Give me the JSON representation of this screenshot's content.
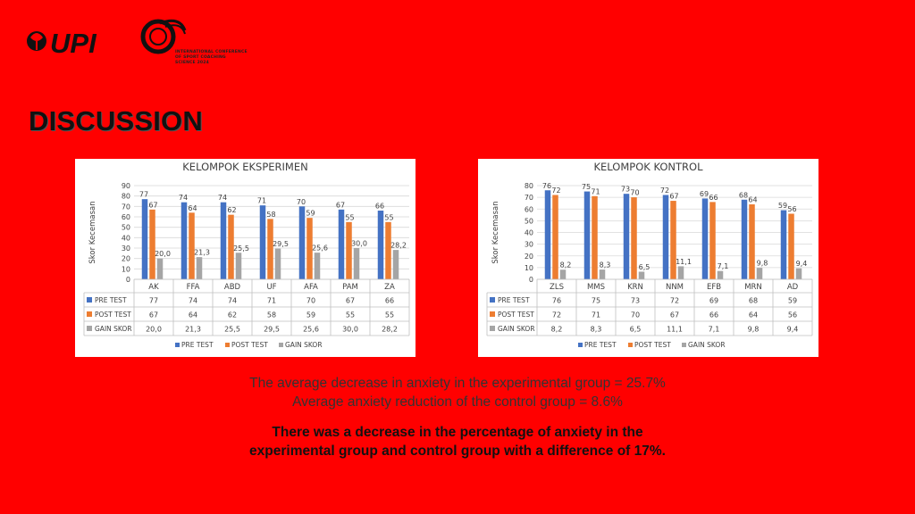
{
  "header": {
    "logo_upi_text": "UPI",
    "logo_conference_text": "INTERNATIONAL CONFERENCE\nOF SPORT COACHING\nSCIENCE 2024"
  },
  "slide": {
    "title": "DISCUSSION",
    "summary_line1": "The average decrease in anxiety in the experimental group = 25.7%",
    "summary_line2": "Average anxiety reduction of the control group = 8.6%",
    "conclusion_line1": "There was a decrease in the percentage of anxiety in the",
    "conclusion_line2": "experimental group and control group with a difference of 17%."
  },
  "colors": {
    "background": "#ff0000",
    "pre_test": "#4472c4",
    "post_test": "#ed7d31",
    "gain_skor": "#a5a5a5"
  },
  "chart_data": [
    {
      "type": "bar",
      "title": "KELOMPOK EKSPERIMEN",
      "ylabel": "Skor Kecemasan",
      "xlabel": "",
      "ylim": [
        0,
        90
      ],
      "yticks": [
        0,
        10,
        20,
        30,
        40,
        50,
        60,
        70,
        80,
        90
      ],
      "grid": true,
      "legend": "bottom",
      "data_table": true,
      "categories": [
        "AK",
        "FFA",
        "ABD",
        "UF",
        "AFA",
        "PAM",
        "ZA"
      ],
      "series": [
        {
          "name": "PRE TEST",
          "values": [
            77,
            74,
            74,
            71,
            70,
            67,
            66
          ],
          "labels": [
            "77",
            "74",
            "74",
            "71",
            "70",
            "67",
            "66"
          ]
        },
        {
          "name": "POST TEST",
          "values": [
            67,
            64,
            62,
            58,
            59,
            55,
            55
          ],
          "labels": [
            "67",
            "64",
            "62",
            "58",
            "59",
            "55",
            "55"
          ]
        },
        {
          "name": "GAIN SKOR",
          "values": [
            20.0,
            21.3,
            25.5,
            29.5,
            25.6,
            30.0,
            28.2
          ],
          "labels": [
            "20,0",
            "21,3",
            "25,5",
            "29,5",
            "25,6",
            "30,0",
            "28,2"
          ]
        }
      ]
    },
    {
      "type": "bar",
      "title": "KELOMPOK KONTROL",
      "ylabel": "Skor Kecemasan",
      "xlabel": "",
      "ylim": [
        0,
        80
      ],
      "yticks": [
        0,
        10,
        20,
        30,
        40,
        50,
        60,
        70,
        80
      ],
      "grid": true,
      "legend": "bottom",
      "data_table": true,
      "categories": [
        "ZLS",
        "MMS",
        "KRN",
        "NNM",
        "EFB",
        "MRN",
        "AD"
      ],
      "series": [
        {
          "name": "PRE TEST",
          "values": [
            76,
            75,
            73,
            72,
            69,
            68,
            59
          ],
          "labels": [
            "76",
            "75",
            "73",
            "72",
            "69",
            "68",
            "59"
          ]
        },
        {
          "name": "POST TEST",
          "values": [
            72,
            71,
            70,
            67,
            66,
            64,
            56
          ],
          "labels": [
            "72",
            "71",
            "70",
            "67",
            "66",
            "64",
            "56"
          ]
        },
        {
          "name": "GAIN SKOR",
          "values": [
            8.2,
            8.3,
            6.5,
            11.1,
            7.1,
            9.8,
            9.4
          ],
          "labels": [
            "8,2",
            "8,3",
            "6,5",
            "11,1",
            "7,1",
            "9,8",
            "9,4"
          ]
        }
      ]
    }
  ]
}
